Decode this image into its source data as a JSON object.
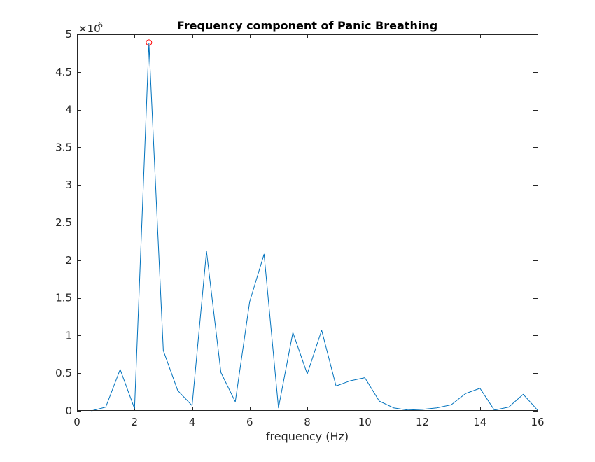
{
  "chart_data": {
    "type": "line",
    "title": "Frequency component of Panic Breathing",
    "xlabel": "frequency (Hz)",
    "ylabel": "",
    "xlim": [
      0,
      16
    ],
    "ylim": [
      0,
      5000000
    ],
    "x_ticks": [
      0,
      2,
      4,
      6,
      8,
      10,
      12,
      14,
      16
    ],
    "x_tick_labels": [
      "0",
      "2",
      "4",
      "6",
      "8",
      "10",
      "12",
      "14",
      "16"
    ],
    "y_ticks": [
      0,
      500000,
      1000000,
      1500000,
      2000000,
      2500000,
      3000000,
      3500000,
      4000000,
      4500000,
      5000000
    ],
    "y_tick_labels": [
      "0",
      "0.5",
      "1",
      "1.5",
      "2",
      "2.5",
      "3",
      "3.5",
      "4",
      "4.5",
      "5"
    ],
    "y_exponent_base": "×10",
    "y_exponent_power": "6",
    "grid": false,
    "box": true,
    "series": [
      {
        "line_color": "#0072BD",
        "x": [
          0.5,
          1,
          1.5,
          2,
          2.5,
          3,
          3.5,
          4,
          4.5,
          5,
          5.5,
          6,
          6.5,
          7,
          7.5,
          8,
          8.5,
          9,
          9.5,
          10,
          10.5,
          11,
          11.5,
          12,
          12.5,
          13,
          13.5,
          14,
          14.5,
          15,
          15.5,
          16
        ],
        "y": [
          0,
          50000,
          550000,
          30000,
          4880000,
          800000,
          270000,
          70000,
          2120000,
          510000,
          120000,
          1450000,
          2080000,
          40000,
          1040000,
          490000,
          1070000,
          330000,
          400000,
          440000,
          130000,
          40000,
          10000,
          20000,
          40000,
          80000,
          230000,
          300000,
          10000,
          50000,
          220000,
          10000
        ]
      }
    ],
    "marker": {
      "x": 2.5,
      "y": 4890000,
      "shape": "circle",
      "color": "#FF0000"
    }
  }
}
